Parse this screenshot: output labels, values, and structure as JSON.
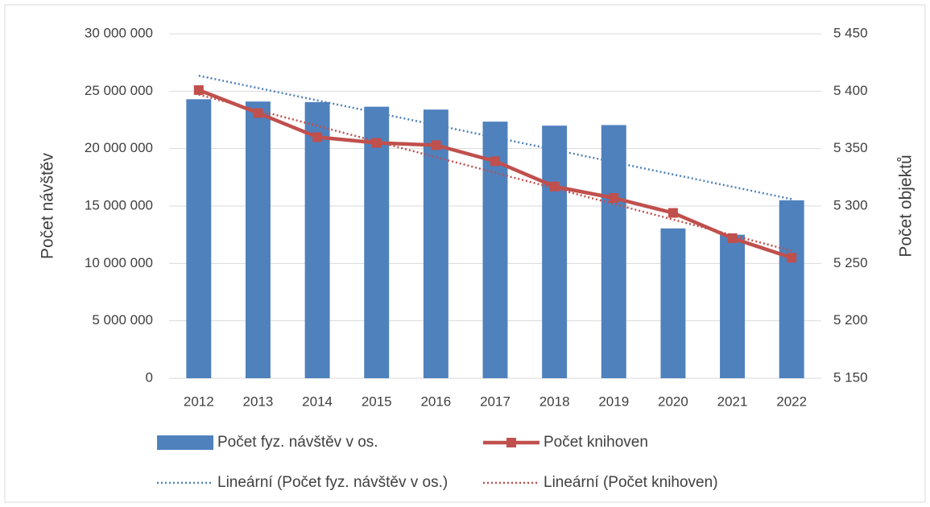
{
  "chart_data": {
    "type": "bar-line",
    "y_label": "Počet návštěv",
    "y2_label": "Počet objektů",
    "categories": [
      "2012",
      "2013",
      "2014",
      "2015",
      "2016",
      "2017",
      "2018",
      "2019",
      "2020",
      "2021",
      "2022"
    ],
    "series": [
      {
        "name": "Počet fyz. návštěv v os.",
        "type": "bar",
        "color": "#4f81bd",
        "axis": "y",
        "values": [
          24300000,
          24100000,
          24050000,
          23650000,
          23400000,
          22350000,
          22000000,
          22050000,
          13050000,
          12500000,
          15500000
        ]
      },
      {
        "name": "Počet knihoven",
        "type": "line",
        "color": "#c0504d",
        "axis": "y2",
        "values": [
          5401,
          5381,
          5360,
          5355,
          5353,
          5339,
          5317,
          5307,
          5294,
          5272,
          5255
        ]
      },
      {
        "name": "Lineární (Počet fyz. návštěv v os.)",
        "type": "trend",
        "color": "#4f81bd",
        "axis": "y",
        "values": [
          26350000,
          25275000,
          24200000,
          23125000,
          22050000,
          20975000,
          19900000,
          18825000,
          17750000,
          16675000,
          15600000
        ]
      },
      {
        "name": "Lineární (Počet knihoven)",
        "type": "trend",
        "color": "#c0504d",
        "axis": "y2",
        "values": [
          5397,
          5383.4,
          5369.8,
          5356.2,
          5342.6,
          5329,
          5315.4,
          5301.8,
          5288.2,
          5274.6,
          5261
        ]
      }
    ],
    "ylim": [
      0,
      30000000
    ],
    "yticks": [
      0,
      {
        "value": 5000000,
        "label": "5 000 000"
      },
      {
        "value": 10000000,
        "label": "10 000 000"
      },
      {
        "value": 15000000,
        "label": "15 000 000"
      },
      {
        "value": 20000000,
        "label": "20 000 000"
      },
      {
        "value": 25000000,
        "label": "25 000 000"
      },
      {
        "value": 30000000,
        "label": "30 000 000"
      }
    ],
    "y2lim": [
      5150,
      5450
    ],
    "y2ticks": [
      {
        "value": 5150,
        "label": "5 150"
      },
      {
        "value": 5200,
        "label": "5 200"
      },
      {
        "value": 5250,
        "label": "5 250"
      },
      {
        "value": 5300,
        "label": "5 300"
      },
      {
        "value": 5350,
        "label": "5 350"
      },
      {
        "value": 5400,
        "label": "5 400"
      },
      {
        "value": 5450,
        "label": "5 450"
      }
    ],
    "grid": true
  }
}
